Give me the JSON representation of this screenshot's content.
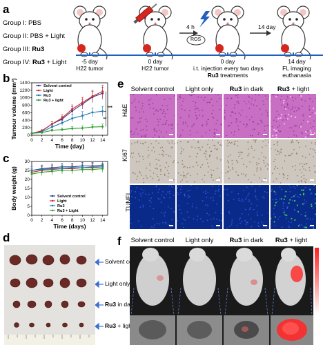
{
  "panels": {
    "a": "a",
    "b": "b",
    "c": "c",
    "d": "d",
    "e": "e",
    "f": "f"
  },
  "panel_a": {
    "groups": [
      {
        "pre": "Group I: PBS",
        "bold": "",
        "post": ""
      },
      {
        "pre": "Group II: PBS + Light",
        "bold": "",
        "post": ""
      },
      {
        "pre": "Group III: ",
        "bold": "Ru3",
        "post": ""
      },
      {
        "pre": "Group IV: ",
        "bold": "Ru3",
        "post": " + Light"
      }
    ],
    "timeline": [
      {
        "l1": "-5 day",
        "l2": "H22 tumor"
      },
      {
        "l1": "0 day",
        "l2": "H22 tumor"
      },
      {
        "l1": "0 day",
        "l2": "i.t. injection every two days",
        "l3b": "Ru3",
        "l3": " treatments"
      },
      {
        "l1": "14 day",
        "l2": "FL imaging",
        "l3": "euthanasia"
      }
    ],
    "arrow1": "4 h",
    "arrow2": "14 day",
    "ros": "ROS",
    "colors": {
      "mouse_outline": "#333333",
      "tumor": "#d7261e",
      "syringe": "#d7261e",
      "timeline": "#1f5fbf"
    }
  },
  "chart_data": [
    {
      "type": "line",
      "xlabel": "Time (day)",
      "ylabel": "Tumour volume (mm³)",
      "xlim": [
        0,
        15
      ],
      "ylim": [
        0,
        1400
      ],
      "x": [
        0,
        2,
        4,
        6,
        8,
        10,
        12,
        14
      ],
      "xticks": [
        "0",
        "2",
        "4",
        "6",
        "8",
        "10",
        "12",
        "14"
      ],
      "yticks": [
        "0",
        "200",
        "400",
        "600",
        "800",
        "1000",
        "1200",
        "1400"
      ],
      "legend_position": "top-left",
      "significance": [
        "***",
        "**"
      ],
      "series": [
        {
          "name": "Solvent control",
          "color": "#2e3a8c",
          "values": [
            50,
            110,
            300,
            430,
            650,
            830,
            1020,
            1120
          ],
          "err": [
            15,
            30,
            60,
            80,
            110,
            130,
            150,
            160
          ]
        },
        {
          "name": "Light",
          "color": "#d62728",
          "values": [
            50,
            120,
            300,
            460,
            700,
            870,
            1040,
            1170
          ],
          "err": [
            15,
            30,
            60,
            90,
            110,
            140,
            160,
            170
          ]
        },
        {
          "name": "Ru3",
          "color": "#1f77b4",
          "values": [
            50,
            90,
            220,
            330,
            450,
            520,
            610,
            640
          ],
          "err": [
            10,
            20,
            50,
            70,
            90,
            110,
            120,
            130
          ]
        },
        {
          "name": "Ru3 + light",
          "color": "#2ca02c",
          "values": [
            50,
            70,
            130,
            150,
            180,
            190,
            220,
            230
          ],
          "err": [
            10,
            20,
            30,
            40,
            50,
            60,
            60,
            70
          ]
        }
      ]
    },
    {
      "type": "line",
      "xlabel": "Time (days)",
      "ylabel": "Body weight (g)",
      "xlim": [
        0,
        15
      ],
      "ylim": [
        0,
        30
      ],
      "x": [
        0,
        2,
        4,
        6,
        8,
        10,
        12,
        14
      ],
      "xticks": [
        "0",
        "2",
        "4",
        "6",
        "8",
        "10",
        "12",
        "14"
      ],
      "yticks": [
        "0",
        "5",
        "10",
        "15",
        "20",
        "25",
        "30"
      ],
      "legend_position": "bottom-center",
      "series": [
        {
          "name": "Solvent control",
          "color": "#2e3a8c",
          "values": [
            25,
            26,
            26.5,
            27,
            27,
            27.5,
            27.5,
            28
          ],
          "err": [
            2,
            2,
            2,
            2,
            2,
            2,
            2,
            2
          ]
        },
        {
          "name": "Light",
          "color": "#d62728",
          "values": [
            24,
            25,
            25.5,
            26,
            26,
            26.5,
            26.5,
            27
          ],
          "err": [
            2,
            2,
            2,
            2,
            2,
            2,
            2,
            2
          ]
        },
        {
          "name": "Ru3",
          "color": "#1f77b4",
          "values": [
            25,
            25.5,
            26,
            26,
            26.5,
            26.5,
            27,
            27
          ],
          "err": [
            2,
            2,
            2,
            2,
            2,
            2,
            2,
            2
          ]
        },
        {
          "name": "Ru3 + Light",
          "color": "#2ca02c",
          "values": [
            23,
            24,
            24.5,
            25,
            25,
            25.5,
            25.5,
            26
          ],
          "err": [
            2,
            2,
            2,
            2,
            2,
            2,
            2,
            2
          ]
        }
      ]
    }
  ],
  "panel_d": {
    "rows": [
      {
        "pre": "Solvent control",
        "bold": "",
        "post": ""
      },
      {
        "pre": "Light only",
        "bold": "",
        "post": ""
      },
      {
        "pre": "",
        "bold": "Ru3",
        "post": " in dark"
      },
      {
        "pre": "",
        "bold": "Ru3",
        "post": " + light"
      }
    ],
    "colors": {
      "background": "#e4e2de",
      "tumor": "#6b2a26",
      "arrow": "#3e6fd0"
    }
  },
  "panel_e": {
    "columns": [
      {
        "pre": "Solvent control",
        "bold": "",
        "post": ""
      },
      {
        "pre": "Light only",
        "bold": "",
        "post": ""
      },
      {
        "pre": "",
        "bold": "Ru3",
        "post": " in dark"
      },
      {
        "pre": "",
        "bold": "Ru3",
        "post": " + light"
      }
    ],
    "rows": [
      "H&E",
      "Ki67",
      "TUNEL"
    ],
    "colors": {
      "he": "#c86fc4",
      "ki67": "#cdc7c0",
      "tunel": "#0a2a8a"
    }
  },
  "panel_f": {
    "columns": [
      {
        "pre": "Solvent control",
        "bold": "",
        "post": ""
      },
      {
        "pre": "Light only",
        "bold": "",
        "post": ""
      },
      {
        "pre": "",
        "bold": "Ru3",
        "post": " in dark"
      },
      {
        "pre": "",
        "bold": "Ru3",
        "post": " + light"
      }
    ],
    "colors": {
      "background": "#1a1a1a",
      "signal": "#ff3030",
      "scale_top": "#ff2020",
      "scale_bottom": "#ffffff"
    }
  }
}
